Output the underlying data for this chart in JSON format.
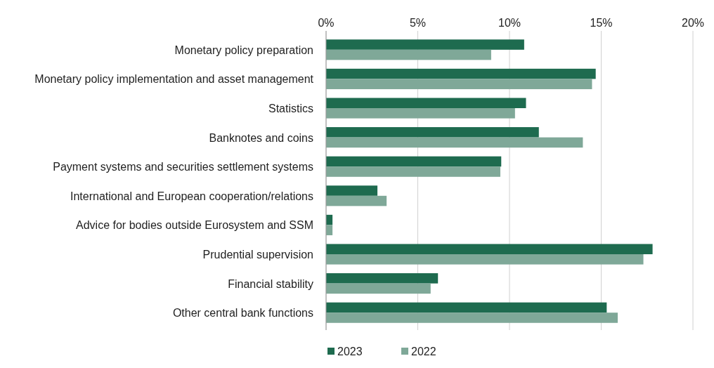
{
  "chart_data": {
    "type": "bar",
    "orientation": "horizontal",
    "categories": [
      "Monetary policy preparation",
      "Monetary policy implementation and asset management",
      "Statistics",
      "Banknotes and coins",
      "Payment systems and securities settlement systems",
      "International and European cooperation/relations",
      "Advice for bodies outside Eurosystem and SSM",
      "Prudential supervision",
      "Financial stability",
      "Other central bank functions"
    ],
    "series": [
      {
        "name": "2023",
        "color": "#1e6b4f",
        "values": [
          10.8,
          14.7,
          10.9,
          11.6,
          9.55,
          2.8,
          0.35,
          17.8,
          6.1,
          15.3
        ]
      },
      {
        "name": "2022",
        "color": "#7fa898",
        "values": [
          9.0,
          14.5,
          10.3,
          14.0,
          9.5,
          3.3,
          0.35,
          17.3,
          5.7,
          15.9
        ]
      }
    ],
    "xlim": [
      0,
      20
    ],
    "xticks": [
      {
        "value": 0,
        "label": "0%"
      },
      {
        "value": 5,
        "label": "5%"
      },
      {
        "value": 10,
        "label": "10%"
      },
      {
        "value": 15,
        "label": "15%"
      },
      {
        "value": 20,
        "label": "20%"
      }
    ],
    "grid": "x",
    "legend": "bottom"
  }
}
